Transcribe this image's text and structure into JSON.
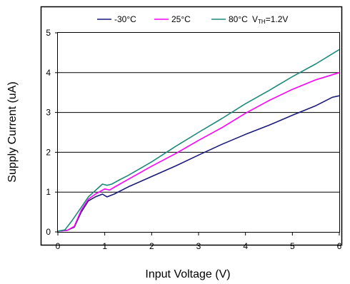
{
  "chart_data": {
    "type": "line",
    "title": "",
    "xlabel": "Input Voltage (V)",
    "ylabel": "Supply Current (uA)",
    "xlim": [
      0,
      6
    ],
    "ylim": [
      0,
      5
    ],
    "x_ticks": [
      "0",
      "1",
      "2",
      "3",
      "4",
      "5",
      "6"
    ],
    "y_ticks": [
      "0",
      "1",
      "2",
      "3",
      "4",
      "5"
    ],
    "grid": "horizontal",
    "legend_position": "top",
    "annotation": {
      "main": "V",
      "sub": "TH",
      "rest": "=1.2V"
    },
    "series": [
      {
        "name": "-30°C",
        "color": "#1a1a7a",
        "points": [
          [
            0,
            0.02
          ],
          [
            0.2,
            0.04
          ],
          [
            0.35,
            0.12
          ],
          [
            0.5,
            0.5
          ],
          [
            0.65,
            0.78
          ],
          [
            0.8,
            0.88
          ],
          [
            0.95,
            0.95
          ],
          [
            1.05,
            0.88
          ],
          [
            1.2,
            0.95
          ],
          [
            1.5,
            1.13
          ],
          [
            2.0,
            1.39
          ],
          [
            2.5,
            1.65
          ],
          [
            3.0,
            1.93
          ],
          [
            3.5,
            2.2
          ],
          [
            4.0,
            2.45
          ],
          [
            4.5,
            2.68
          ],
          [
            5.0,
            2.93
          ],
          [
            5.5,
            3.17
          ],
          [
            5.85,
            3.38
          ],
          [
            6.0,
            3.42
          ]
        ]
      },
      {
        "name": "25°C",
        "color": "#ff00ff",
        "points": [
          [
            0,
            0.02
          ],
          [
            0.2,
            0.04
          ],
          [
            0.35,
            0.14
          ],
          [
            0.5,
            0.55
          ],
          [
            0.65,
            0.82
          ],
          [
            0.8,
            0.95
          ],
          [
            1.0,
            1.08
          ],
          [
            1.1,
            1.05
          ],
          [
            1.2,
            1.12
          ],
          [
            1.5,
            1.32
          ],
          [
            2.0,
            1.65
          ],
          [
            2.5,
            1.96
          ],
          [
            3.0,
            2.3
          ],
          [
            3.5,
            2.62
          ],
          [
            4.0,
            2.98
          ],
          [
            4.5,
            3.3
          ],
          [
            5.0,
            3.58
          ],
          [
            5.5,
            3.82
          ],
          [
            6.0,
            4.0
          ]
        ]
      },
      {
        "name": "80°C",
        "color": "#1a8a7a",
        "points": [
          [
            0,
            0.02
          ],
          [
            0.15,
            0.05
          ],
          [
            0.3,
            0.28
          ],
          [
            0.5,
            0.62
          ],
          [
            0.65,
            0.88
          ],
          [
            0.8,
            1.04
          ],
          [
            0.95,
            1.2
          ],
          [
            1.05,
            1.17
          ],
          [
            1.15,
            1.2
          ],
          [
            1.3,
            1.3
          ],
          [
            1.5,
            1.42
          ],
          [
            2.0,
            1.76
          ],
          [
            2.5,
            2.14
          ],
          [
            3.0,
            2.5
          ],
          [
            3.5,
            2.85
          ],
          [
            4.0,
            3.22
          ],
          [
            4.5,
            3.55
          ],
          [
            5.0,
            3.9
          ],
          [
            5.5,
            4.22
          ],
          [
            6.0,
            4.58
          ]
        ]
      }
    ]
  }
}
